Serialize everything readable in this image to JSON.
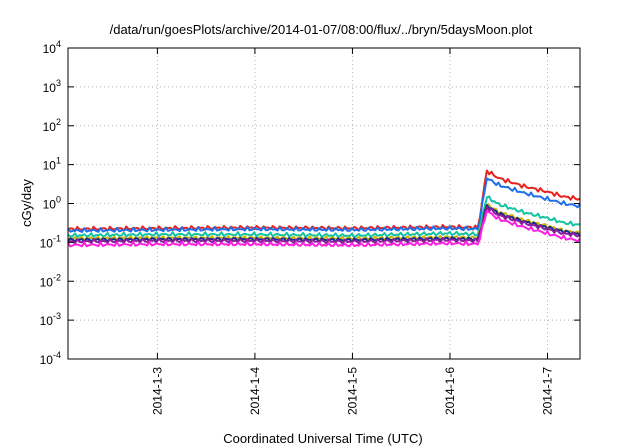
{
  "chart_data": {
    "type": "line",
    "title": "/data/run/goesPlots/archive/2014-01-07/08:00/flux/../bryn/5daysMoon.plot",
    "xlabel": "Coordinated Universal Time (UTC)",
    "ylabel": "cGy/day",
    "yscale": "log",
    "ylim": [
      0.0001,
      10000
    ],
    "xlim": [
      "2014-01-02 02:00",
      "2014-01-07 08:00"
    ],
    "y_ticks": [
      {
        "value": 0.0001,
        "base": "10",
        "exp": "-4"
      },
      {
        "value": 0.001,
        "base": "10",
        "exp": "-3"
      },
      {
        "value": 0.01,
        "base": "10",
        "exp": "-2"
      },
      {
        "value": 0.1,
        "base": "10",
        "exp": "-1"
      },
      {
        "value": 1,
        "base": "10",
        "exp": "0"
      },
      {
        "value": 10,
        "base": "10",
        "exp": "1"
      },
      {
        "value": 100,
        "base": "10",
        "exp": "2"
      },
      {
        "value": 1000,
        "base": "10",
        "exp": "3"
      },
      {
        "value": 10000,
        "base": "10",
        "exp": "4"
      }
    ],
    "x_ticks": [
      {
        "label": "2014-1-3",
        "value": "2014-01-03 00:00"
      },
      {
        "label": "2014-1-4",
        "value": "2014-01-04 00:00"
      },
      {
        "label": "2014-1-5",
        "value": "2014-01-05 00:00"
      },
      {
        "label": "2014-1-6",
        "value": "2014-01-06 00:00"
      },
      {
        "label": "2014-1-7",
        "value": "2014-01-07 00:00"
      }
    ],
    "grid": true,
    "series": [
      {
        "color": "#e8231f",
        "x": [
          "2014-01-02 02:00",
          "2014-01-03 00:00",
          "2014-01-04 00:00",
          "2014-01-05 00:00",
          "2014-01-06 00:00",
          "2014-01-06 07:00",
          "2014-01-06 09:00",
          "2014-01-06 12:00",
          "2014-01-06 18:00",
          "2014-01-07 00:00",
          "2014-01-07 04:00",
          "2014-01-07 08:00"
        ],
        "y": [
          0.22,
          0.23,
          0.24,
          0.23,
          0.25,
          0.24,
          7.0,
          4.5,
          2.8,
          2.0,
          1.5,
          1.3
        ]
      },
      {
        "color": "#1f6fe8",
        "x": [
          "2014-01-02 02:00",
          "2014-01-03 00:00",
          "2014-01-04 00:00",
          "2014-01-05 00:00",
          "2014-01-06 00:00",
          "2014-01-06 07:00",
          "2014-01-06 09:00",
          "2014-01-06 12:00",
          "2014-01-06 18:00",
          "2014-01-07 00:00",
          "2014-01-07 04:00",
          "2014-01-07 08:00"
        ],
        "y": [
          0.2,
          0.21,
          0.22,
          0.21,
          0.23,
          0.22,
          4.5,
          3.0,
          1.9,
          1.3,
          1.0,
          0.85
        ]
      },
      {
        "color": "#14c3a2",
        "x": [
          "2014-01-02 02:00",
          "2014-01-03 00:00",
          "2014-01-04 00:00",
          "2014-01-05 00:00",
          "2014-01-06 00:00",
          "2014-01-06 07:00",
          "2014-01-06 09:00",
          "2014-01-06 12:00",
          "2014-01-06 18:00",
          "2014-01-07 00:00",
          "2014-01-07 04:00",
          "2014-01-07 08:00"
        ],
        "y": [
          0.15,
          0.16,
          0.16,
          0.15,
          0.17,
          0.16,
          1.5,
          0.95,
          0.6,
          0.42,
          0.32,
          0.28
        ]
      },
      {
        "color": "#c8b400",
        "x": [
          "2014-01-02 02:00",
          "2014-01-03 00:00",
          "2014-01-04 00:00",
          "2014-01-05 00:00",
          "2014-01-06 00:00",
          "2014-01-06 07:00",
          "2014-01-06 09:00",
          "2014-01-06 12:00",
          "2014-01-06 18:00",
          "2014-01-07 00:00",
          "2014-01-07 04:00",
          "2014-01-07 08:00"
        ],
        "y": [
          0.125,
          0.13,
          0.13,
          0.125,
          0.135,
          0.13,
          0.95,
          0.6,
          0.38,
          0.26,
          0.2,
          0.17
        ]
      },
      {
        "color": "#1a2a8c",
        "x": [
          "2014-01-02 02:00",
          "2014-01-03 00:00",
          "2014-01-04 00:00",
          "2014-01-05 00:00",
          "2014-01-06 00:00",
          "2014-01-06 07:00",
          "2014-01-06 09:00",
          "2014-01-06 12:00",
          "2014-01-06 18:00",
          "2014-01-07 00:00",
          "2014-01-07 04:00",
          "2014-01-07 08:00"
        ],
        "y": [
          0.115,
          0.12,
          0.12,
          0.115,
          0.125,
          0.12,
          0.9,
          0.55,
          0.35,
          0.24,
          0.19,
          0.16
        ]
      },
      {
        "color": "#8a1f9e",
        "x": [
          "2014-01-02 02:00",
          "2014-01-03 00:00",
          "2014-01-04 00:00",
          "2014-01-05 00:00",
          "2014-01-06 00:00",
          "2014-01-06 07:00",
          "2014-01-06 09:00",
          "2014-01-06 12:00",
          "2014-01-06 18:00",
          "2014-01-07 00:00",
          "2014-01-07 04:00",
          "2014-01-07 08:00"
        ],
        "y": [
          0.105,
          0.11,
          0.11,
          0.105,
          0.115,
          0.11,
          0.8,
          0.5,
          0.32,
          0.22,
          0.17,
          0.15
        ]
      },
      {
        "color": "#ff1fe0",
        "x": [
          "2014-01-02 02:00",
          "2014-01-03 00:00",
          "2014-01-04 00:00",
          "2014-01-05 00:00",
          "2014-01-06 00:00",
          "2014-01-06 07:00",
          "2014-01-06 09:00",
          "2014-01-06 12:00",
          "2014-01-06 18:00",
          "2014-01-07 00:00",
          "2014-01-07 04:00",
          "2014-01-07 08:00"
        ],
        "y": [
          0.085,
          0.09,
          0.09,
          0.085,
          0.095,
          0.09,
          0.65,
          0.4,
          0.25,
          0.17,
          0.13,
          0.11
        ]
      }
    ]
  }
}
